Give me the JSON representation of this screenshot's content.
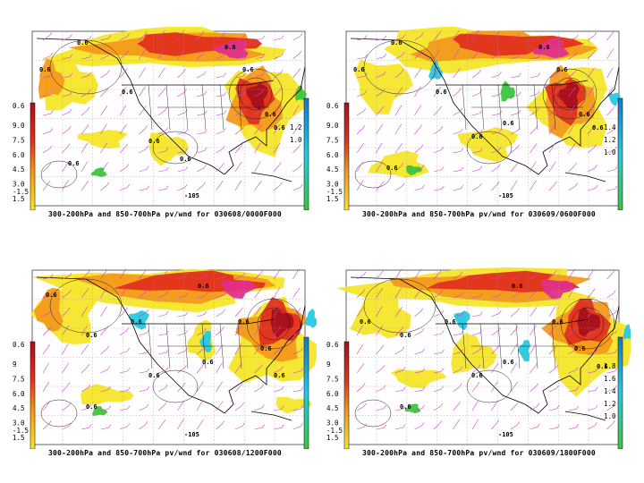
{
  "panels": [
    {
      "caption": "300-200hPa and 850-700hPa pv/wnd for 030608/0000F000",
      "left_scale": [
        "9.0",
        "7.5",
        "6.0",
        "4.5",
        "3.0",
        "1.5"
      ],
      "left_top_label": "0.6",
      "left_bottom_label": "-1.5",
      "right_scale": [
        "1.2",
        "1.0"
      ],
      "contour_labels": [
        "0.6",
        "0.6",
        "0.6",
        "0.6",
        "0.6",
        "0.6",
        "0.6",
        "0.6",
        "0.6",
        "0.6"
      ],
      "contour_value": "-105"
    },
    {
      "caption": "300-200hPa and 850-700hPa pv/wnd for 030609/0600F000",
      "left_scale": [
        "9.0",
        "7.5",
        "6.0",
        "4.5",
        "3.0",
        "1.5"
      ],
      "left_top_label": "0.6",
      "left_bottom_label": "-1.5",
      "right_scale": [
        "1.4",
        "1.2",
        "1.0"
      ],
      "contour_labels": [
        "0.6",
        "0.6",
        "0.6",
        "0.6",
        "0.6",
        "0.6",
        "0.6",
        "0.6",
        "0.6",
        "0.6"
      ],
      "contour_value": "-105"
    },
    {
      "caption": "300-200hPa and 850-700hPa pv/wnd for 030608/1200F000",
      "left_scale": [
        "9",
        "7.5",
        "6.0",
        "4.5",
        "3.0",
        "1.5"
      ],
      "left_top_label": "0.6",
      "left_bottom_label": "-1.5",
      "right_scale": [],
      "contour_labels": [
        "0.6",
        "0.6",
        "0.6",
        "0.6",
        "0.6",
        "0.6",
        "0.6",
        "0.6",
        "0.6",
        "0.6"
      ],
      "contour_value": "-105"
    },
    {
      "caption": "300-200hPa and 850-700hPa pv/wnd for 030609/1800F000",
      "left_scale": [
        "9",
        "7.5",
        "6.0",
        "4.5",
        "3.0",
        "1.5"
      ],
      "left_top_label": "0.6",
      "left_bottom_label": "-1.5",
      "right_scale": [
        "1.8",
        "1.6",
        "1.4",
        "1.2",
        "1.0"
      ],
      "contour_labels": [
        "0.6",
        "0.6",
        "0.6",
        "0.6",
        "0.6",
        "0.6",
        "0.6",
        "0.6",
        "0.6",
        "0.6"
      ],
      "contour_value": "-105"
    }
  ],
  "colors": {
    "background": "#ffffff",
    "pv_yellow": "#f5e62a",
    "pv_orange": "#f49a1c",
    "pv_red": "#e0301e",
    "pv_darkred": "#a8101a",
    "pv_magenta": "#e0308a",
    "low_green": "#3cc43c",
    "low_cyan": "#28c8e0",
    "wind_barb": "#d040d0",
    "coast": "#000000",
    "grid": "#9a9a9a"
  }
}
